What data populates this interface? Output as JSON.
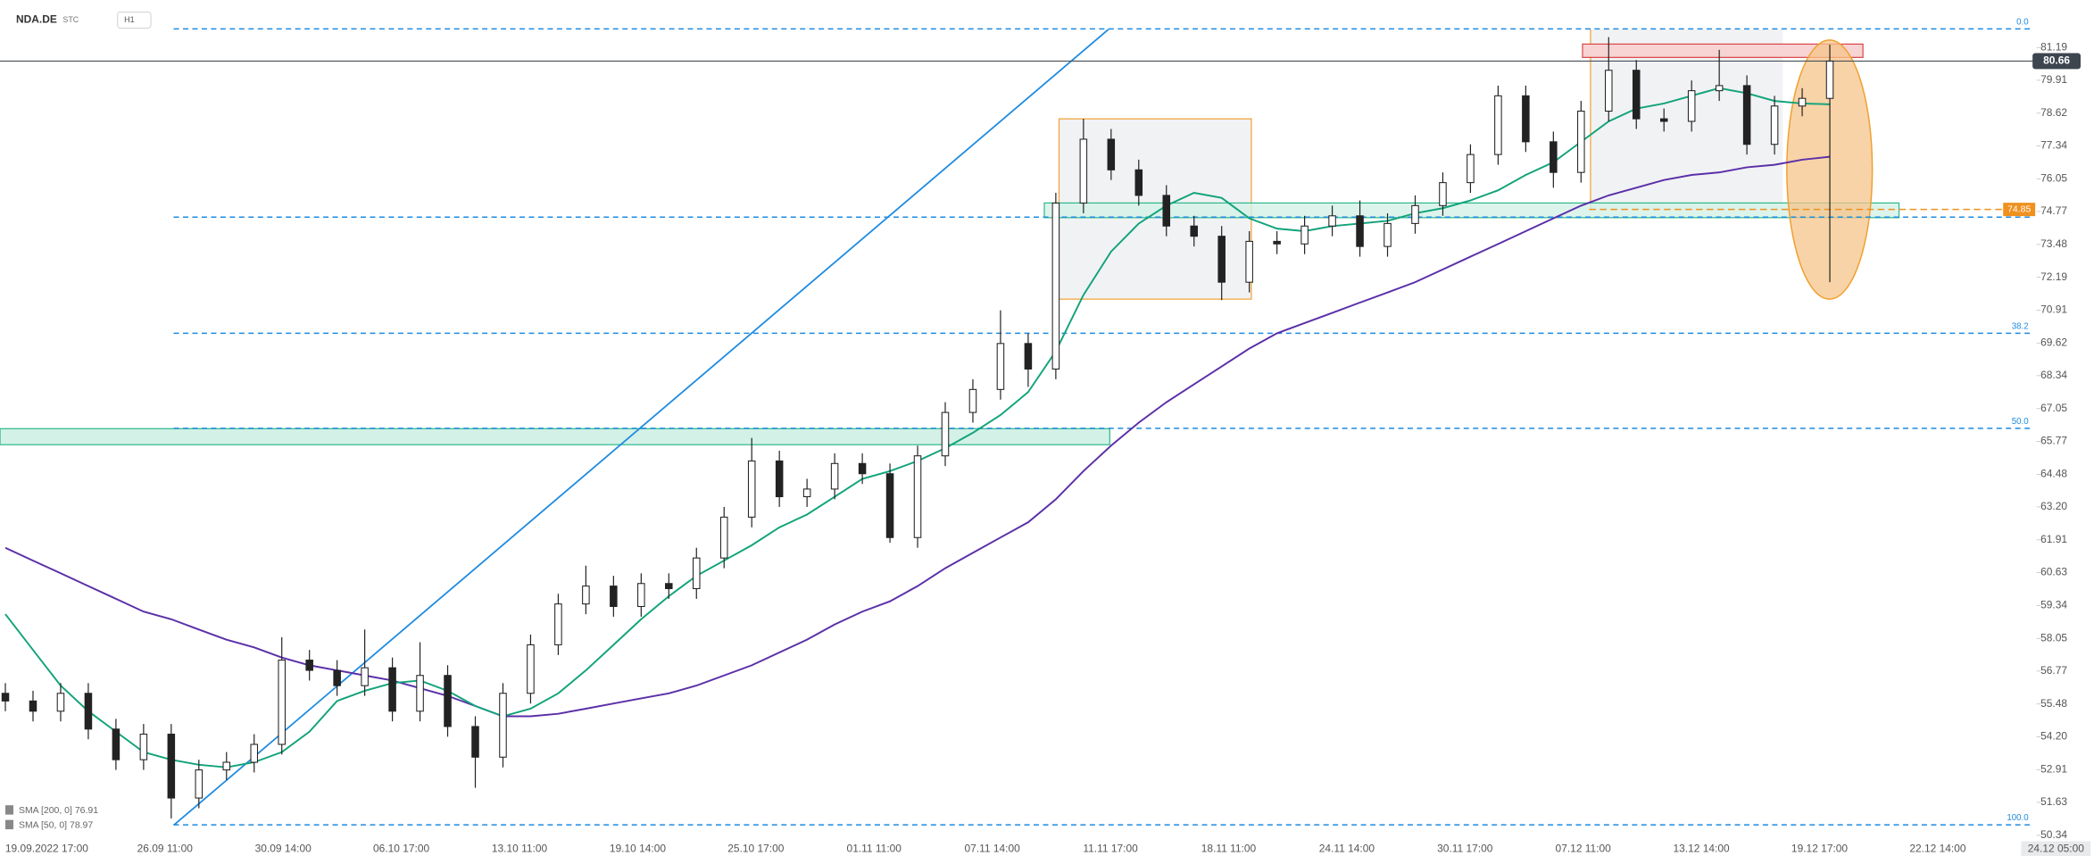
{
  "chart_data": {
    "type": "candlestick",
    "symbol": "NDA.DE",
    "tag": "STC",
    "timeframe": "H1",
    "ylim": [
      50,
      83
    ],
    "yticks": [
      81.19,
      79.91,
      78.62,
      77.34,
      76.05,
      74.77,
      73.48,
      72.19,
      70.91,
      69.62,
      68.34,
      67.05,
      65.77,
      64.48,
      {
        "value": 63.2,
        "label": "63.20"
      },
      61.91,
      60.63,
      59.34,
      58.05,
      56.77,
      55.48,
      {
        "value": 54.2,
        "label": "54.20"
      },
      52.91,
      51.63,
      50.34
    ],
    "xtick_labels": [
      "19.09.2022 17:00",
      "26.09 11:00",
      "30.09 14:00",
      "06.10 17:00",
      "13.10 11:00",
      "19.10 14:00",
      "25.10 17:00",
      "01.11 11:00",
      "07.11 14:00",
      "11.11 17:00",
      "18.11 11:00",
      "24.11 14:00",
      "30.11 17:00",
      "07.12 11:00",
      "13.12 14:00",
      "19.12 17:00",
      "22.12 14:00",
      "24.12 05:00"
    ],
    "open": [
      55.9,
      55.6,
      55.2,
      55.9,
      54.5,
      53.3,
      54.3,
      51.8,
      52.9,
      53.2,
      53.9,
      57.2,
      56.8,
      56.2,
      56.9,
      55.2,
      56.6,
      54.6,
      53.4,
      55.9,
      57.8,
      59.4,
      60.1,
      59.3,
      60.2,
      60.0,
      61.2,
      62.8,
      65.0,
      63.6,
      63.9,
      64.9,
      64.5,
      62.0,
      65.2,
      66.9,
      67.8,
      69.6,
      68.6,
      75.1,
      77.6,
      76.4,
      75.4,
      74.2,
      73.8,
      72.0,
      73.6,
      73.5,
      74.2,
      74.6,
      73.4,
      74.3,
      75.0,
      75.9,
      77.0,
      79.3,
      77.5,
      76.3,
      78.7,
      80.3,
      78.4,
      78.3,
      79.5,
      79.7,
      77.4,
      78.9,
      79.2
    ],
    "high": [
      56.3,
      56.0,
      56.3,
      56.3,
      54.9,
      54.7,
      54.7,
      53.3,
      53.6,
      54.3,
      58.1,
      57.6,
      57.2,
      58.4,
      57.3,
      57.9,
      57.0,
      55.0,
      56.3,
      58.2,
      59.8,
      60.9,
      60.5,
      60.6,
      60.6,
      61.6,
      63.2,
      65.9,
      65.4,
      64.3,
      65.3,
      65.3,
      64.9,
      65.6,
      67.3,
      68.2,
      70.9,
      70.0,
      75.5,
      78.4,
      78.0,
      76.8,
      75.8,
      74.6,
      74.2,
      74.0,
      74.0,
      74.6,
      75.0,
      75.2,
      74.7,
      75.4,
      76.3,
      77.4,
      79.7,
      79.7,
      77.9,
      79.1,
      81.6,
      80.7,
      78.8,
      79.9,
      81.1,
      80.1,
      79.3,
      79.6,
      81.3
    ],
    "low": [
      55.2,
      54.8,
      54.8,
      54.1,
      52.9,
      52.9,
      51.0,
      51.4,
      52.5,
      52.8,
      53.5,
      56.4,
      55.8,
      55.8,
      54.8,
      54.8,
      54.2,
      52.2,
      53.0,
      55.5,
      57.4,
      59.0,
      58.9,
      58.9,
      59.6,
      59.6,
      60.8,
      62.4,
      63.2,
      63.2,
      63.5,
      64.1,
      61.8,
      61.6,
      64.8,
      66.5,
      67.4,
      67.9,
      68.2,
      74.7,
      76.0,
      75.0,
      73.8,
      73.4,
      71.3,
      71.6,
      73.1,
      73.1,
      73.8,
      73.0,
      73.0,
      73.9,
      74.6,
      75.5,
      76.6,
      77.1,
      75.7,
      75.9,
      78.3,
      78.0,
      77.9,
      77.9,
      79.1,
      77.0,
      77.0,
      78.5,
      72.0
    ],
    "close": [
      55.6,
      55.2,
      55.9,
      54.5,
      53.3,
      54.3,
      51.8,
      52.9,
      53.2,
      53.9,
      57.2,
      56.8,
      56.2,
      56.9,
      55.2,
      56.6,
      54.6,
      53.4,
      55.9,
      57.8,
      59.4,
      60.1,
      59.3,
      60.2,
      60.0,
      61.2,
      62.8,
      65.0,
      63.6,
      63.9,
      64.9,
      64.5,
      62.0,
      65.2,
      66.9,
      67.8,
      69.6,
      68.6,
      75.1,
      77.6,
      76.4,
      75.4,
      74.2,
      73.8,
      72.0,
      73.6,
      73.5,
      74.2,
      74.6,
      73.4,
      74.3,
      75.0,
      75.9,
      77.0,
      79.3,
      77.5,
      76.3,
      78.7,
      80.3,
      78.4,
      78.3,
      79.5,
      79.7,
      77.4,
      78.9,
      79.2,
      80.66
    ],
    "series": [
      {
        "name": "SMA [200, 0] 76.91",
        "color": "#5b2fa8",
        "values": [
          61.6,
          61.1,
          60.6,
          60.1,
          59.6,
          59.1,
          58.8,
          58.4,
          58.0,
          57.7,
          57.3,
          57.0,
          56.8,
          56.6,
          56.4,
          56.1,
          55.8,
          55.4,
          55.0,
          55.0,
          55.1,
          55.3,
          55.5,
          55.7,
          55.9,
          56.2,
          56.6,
          57.0,
          57.5,
          58.0,
          58.6,
          59.1,
          59.5,
          60.1,
          60.8,
          61.4,
          62.0,
          62.6,
          63.5,
          64.6,
          65.6,
          66.5,
          67.3,
          68.0,
          68.7,
          69.4,
          70.0,
          70.4,
          70.8,
          71.2,
          71.6,
          72.0,
          72.5,
          73.0,
          73.5,
          74.0,
          74.5,
          75.0,
          75.4,
          75.7,
          76.0,
          76.2,
          76.3,
          76.5,
          76.6,
          76.8,
          76.91
        ]
      },
      {
        "name": "SMA [50, 0] 78.97",
        "color": "#12a37a",
        "values": [
          59.0,
          57.6,
          56.2,
          55.2,
          54.4,
          53.6,
          53.3,
          53.1,
          53.0,
          53.2,
          53.6,
          54.4,
          55.6,
          56.0,
          56.3,
          56.4,
          56.0,
          55.4,
          55.0,
          55.3,
          55.9,
          56.8,
          57.8,
          58.8,
          59.7,
          60.5,
          61.1,
          61.7,
          62.4,
          62.9,
          63.6,
          64.3,
          64.6,
          65.0,
          65.5,
          66.1,
          66.8,
          67.7,
          69.3,
          71.5,
          73.2,
          74.3,
          75.0,
          75.5,
          75.3,
          74.5,
          74.1,
          74.0,
          74.2,
          74.3,
          74.4,
          74.7,
          74.9,
          75.2,
          75.6,
          76.2,
          76.7,
          77.5,
          78.3,
          78.8,
          79.0,
          79.3,
          79.6,
          79.4,
          79.1,
          79.0,
          78.97
        ]
      }
    ],
    "fib_levels": [
      {
        "label": "0.0",
        "price": 81.92
      },
      {
        "label": "38.2",
        "price": 70.0
      },
      {
        "label": "50.0",
        "price": 66.28
      },
      {
        "label": "100.0",
        "price": 50.75
      }
    ],
    "support_level": 74.55,
    "marked_level": {
      "label": "74.85",
      "price": 74.85
    },
    "last_price": {
      "label": "80.66",
      "price": 80.66
    }
  }
}
